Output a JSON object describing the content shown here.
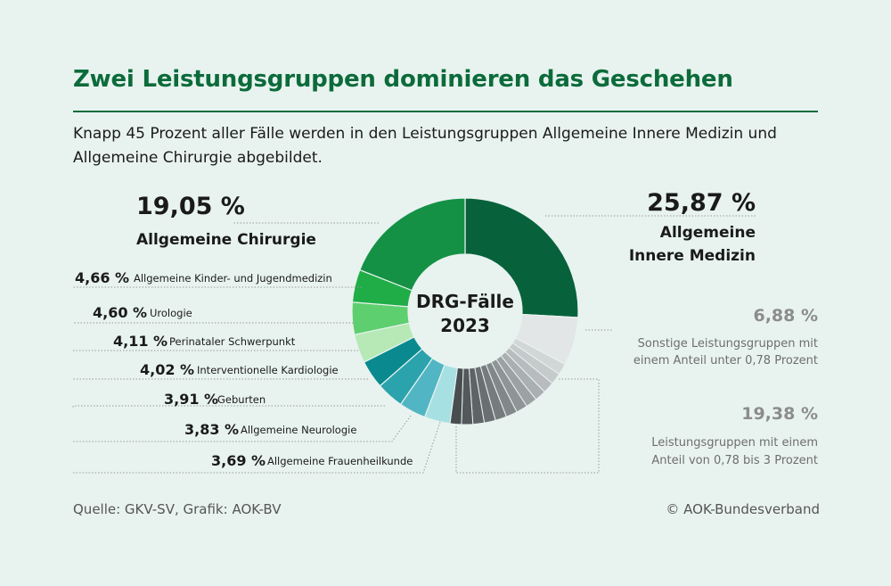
{
  "header": {
    "title": "Zwei Leistungsgruppen dominieren das Geschehen",
    "subtitle": "Knapp 45 Prozent aller Fälle werden in den Leistungsgruppen Allgemeine Innere Medizin und Allgemeine Chirurgie abgebildet."
  },
  "footer": {
    "source": "Quelle: GKV-SV, Grafik: AOK-BV",
    "copyright": "© AOK-Bundesverband"
  },
  "colors": {
    "background": "#e8f3f0",
    "title": "#0c6b3a",
    "dark_green": "#07623b",
    "green": "#159146"
  },
  "chart_data": {
    "type": "pie",
    "variant": "donut",
    "center_label": [
      "DRG-Fälle",
      "2023"
    ],
    "slices": [
      {
        "label": "Allgemeine Innere Medizin",
        "label_lines": [
          "Allgemeine",
          "Innere Medizin"
        ],
        "value": 25.87,
        "display": "25,87 %",
        "color": "#07623b"
      },
      {
        "label": "Sonstige Leistungsgruppen mit einem Anteil unter 0,78 Prozent",
        "label_lines": [
          "Sonstige Leistungsgruppen mit",
          "einem Anteil unter 0,78 Prozent"
        ],
        "value": 6.88,
        "display": "6,88 %",
        "color": "#e3e6e6"
      },
      {
        "label": "Leistungsgruppen mit einem Anteil von 0,78 bis 3 Prozent",
        "label_lines": [
          "Leistungsgruppen mit einem",
          "Anteil von 0,78 bis 3 Prozent"
        ],
        "value": 19.38,
        "display": "19,38 %",
        "color": "#9aa0a2"
      },
      {
        "label": "Allgemeine Frauenheilkunde",
        "value": 3.69,
        "display": "3,69 %",
        "color": "#a6e0e2"
      },
      {
        "label": "Allgemeine Neurologie",
        "value": 3.83,
        "display": "3,83 %",
        "color": "#52b5c3"
      },
      {
        "label": "Geburten",
        "value": 3.91,
        "display": "3,91 %",
        "color": "#2aa3ad"
      },
      {
        "label": "Interventionelle Kardiologie",
        "value": 4.02,
        "display": "4,02 %",
        "color": "#0a8a8e"
      },
      {
        "label": "Perinataler Schwerpunkt",
        "value": 4.11,
        "display": "4,11 %",
        "color": "#b6e9b6"
      },
      {
        "label": "Urologie",
        "value": 4.6,
        "display": "4,60 %",
        "color": "#5ecf6e"
      },
      {
        "label": "Allgemeine Kinder- und Jugendmedizin",
        "value": 4.66,
        "display": "4,66 %",
        "color": "#20ad47"
      },
      {
        "label": "Allgemeine Chirurgie",
        "value": 19.05,
        "display": "19,05 %",
        "color": "#159146"
      }
    ]
  }
}
